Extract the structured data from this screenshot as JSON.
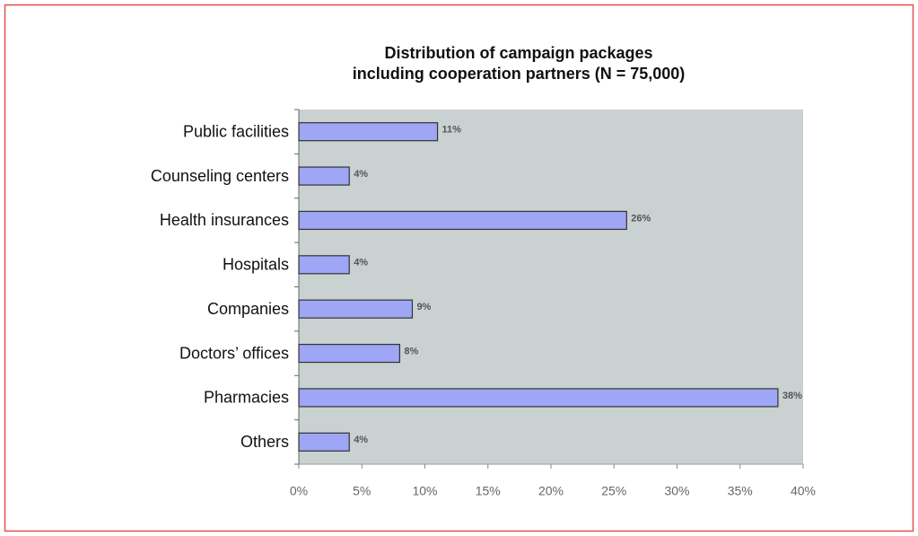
{
  "chart_data": {
    "type": "hbar",
    "title": [
      "Distribution of campaign packages",
      "including cooperation partners (N = 75,000)"
    ],
    "categories": [
      "Public facilities",
      "Counseling centers",
      "Health insurances",
      "Hospitals",
      "Companies",
      "Doctors’ offices",
      "Pharmacies",
      "Others"
    ],
    "values": [
      11,
      4,
      26,
      4,
      9,
      8,
      38,
      4
    ],
    "value_labels": [
      "11%",
      "4%",
      "26%",
      "4%",
      "9%",
      "8%",
      "38%",
      "4%"
    ],
    "color": "#9ea6f5",
    "xlim": [
      0,
      40
    ],
    "xticks": [
      {
        "value": 0,
        "label": "0%"
      },
      {
        "value": 5,
        "label": "5%"
      },
      {
        "value": 10,
        "label": "10%"
      },
      {
        "value": 15,
        "label": "15%"
      },
      {
        "value": 20,
        "label": "20%"
      },
      {
        "value": 25,
        "label": "25%"
      },
      {
        "value": 30,
        "label": "30%"
      },
      {
        "value": 35,
        "label": "35%"
      },
      {
        "value": 40,
        "label": "40%"
      }
    ],
    "grid": false
  }
}
